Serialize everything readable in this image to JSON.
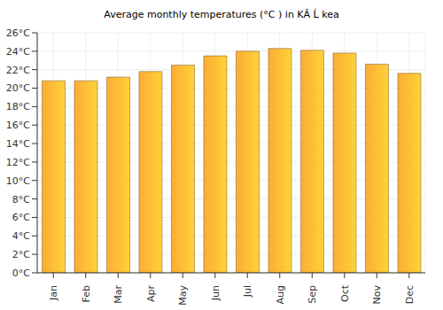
{
  "chart_data": {
    "type": "bar",
    "title": "Average monthly temperatures (°C ) in KĂ Ĺ kea",
    "categories": [
      "Jan",
      "Feb",
      "Mar",
      "Apr",
      "May",
      "Jun",
      "Jul",
      "Aug",
      "Sep",
      "Oct",
      "Nov",
      "Dec"
    ],
    "values": [
      20.8,
      20.8,
      21.2,
      21.8,
      22.5,
      23.5,
      24.0,
      24.3,
      24.1,
      23.8,
      22.6,
      21.6
    ],
    "color": "#fbac34",
    "ylim": [
      0,
      26
    ],
    "yticks": [
      {
        "value": 0,
        "label": "0°C"
      },
      {
        "value": 2,
        "label": "2°C"
      },
      {
        "value": 4,
        "label": "4°C"
      },
      {
        "value": 6,
        "label": "6°C"
      },
      {
        "value": 8,
        "label": "8°C"
      },
      {
        "value": 10,
        "label": "10°C"
      },
      {
        "value": 12,
        "label": "12°C"
      },
      {
        "value": 14,
        "label": "14°C"
      },
      {
        "value": 16,
        "label": "16°C"
      },
      {
        "value": 18,
        "label": "18°C"
      },
      {
        "value": 20,
        "label": "20°C"
      },
      {
        "value": 22,
        "label": "22°C"
      },
      {
        "value": 24,
        "label": "24°C"
      },
      {
        "value": 26,
        "label": "26°C"
      }
    ],
    "grid": true
  }
}
